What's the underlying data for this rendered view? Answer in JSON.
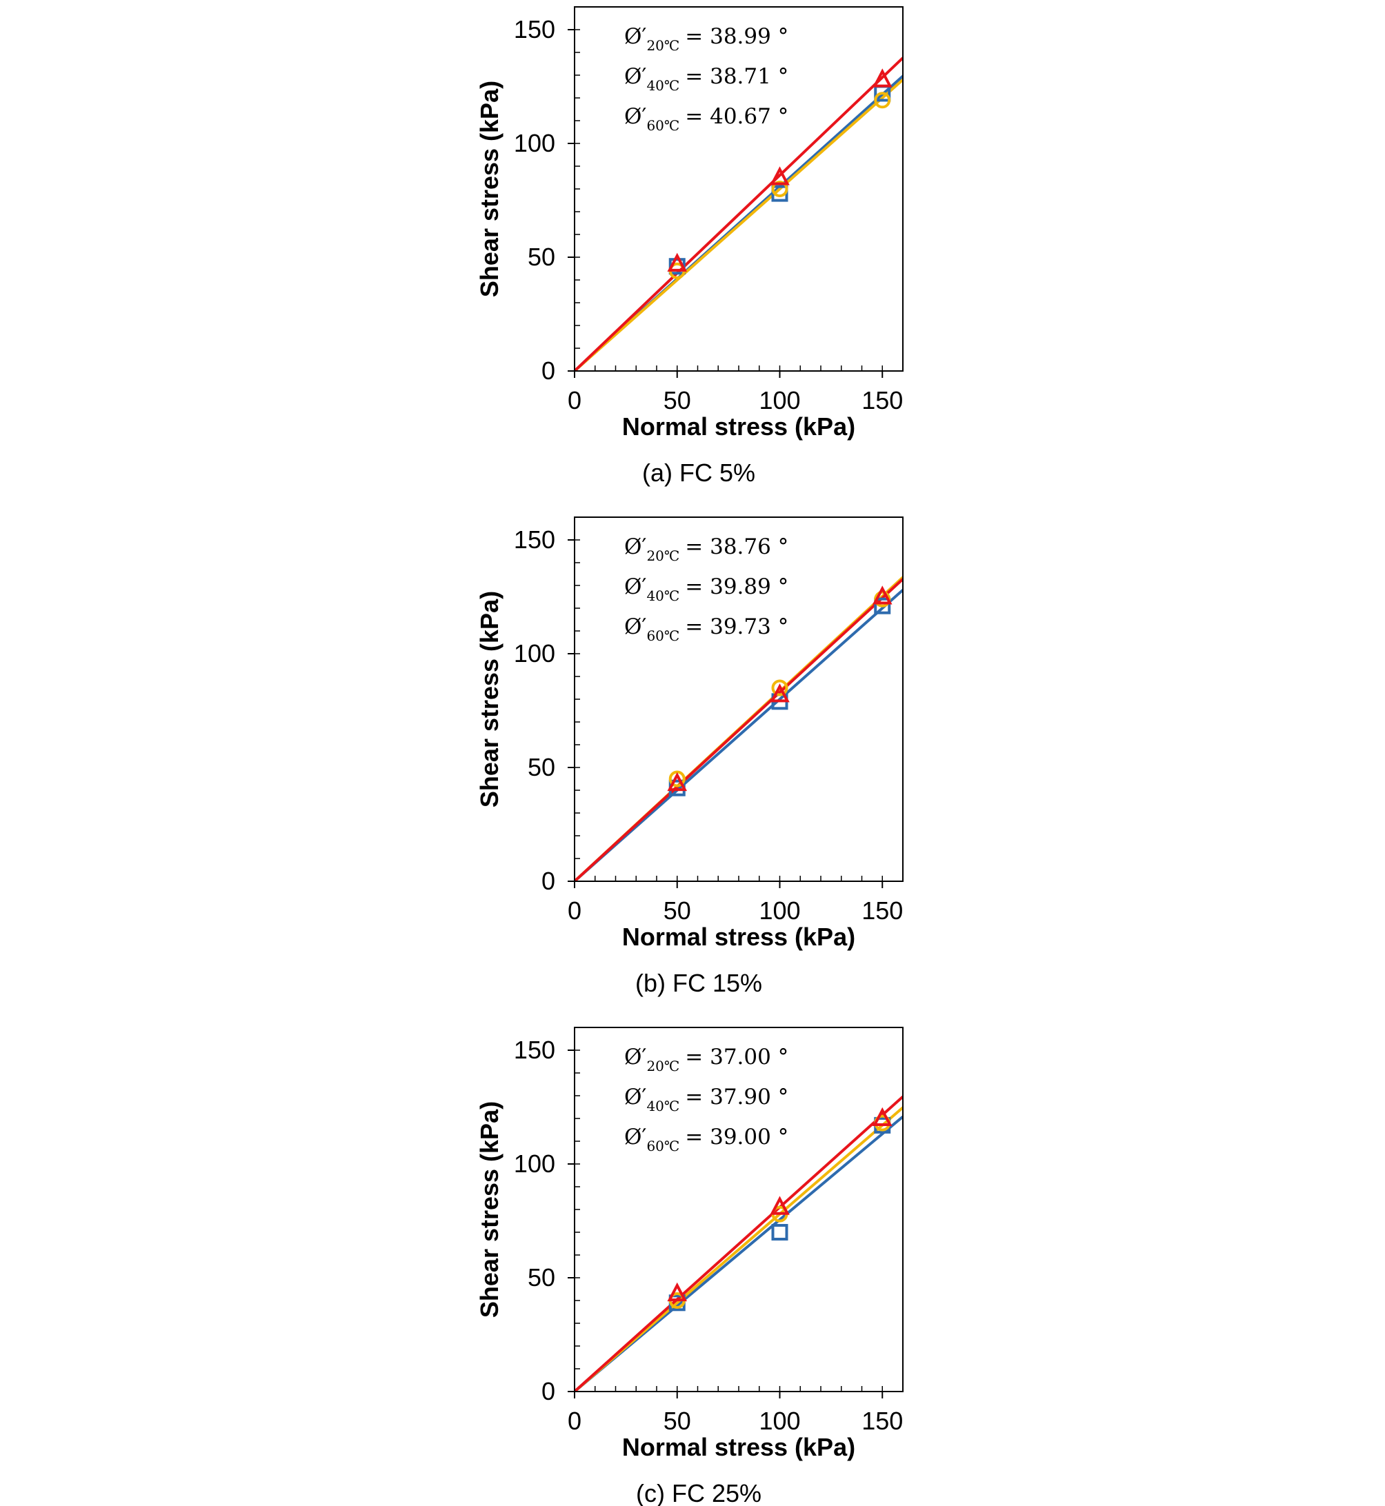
{
  "chart_data": [
    {
      "type": "scatter",
      "panel": "a",
      "caption": "(a) FC 5%",
      "xlabel": "Normal stress (kPa)",
      "ylabel": "Shear stress (kPa)",
      "xlim": [
        0,
        160
      ],
      "ylim": [
        0,
        160
      ],
      "xticks": [
        0,
        50,
        100,
        150
      ],
      "yticks": [
        0,
        50,
        100,
        150
      ],
      "grid": false,
      "annotations": [
        {
          "symbol": "Ø′",
          "subscript": "20℃",
          "text": "= 38.99 °"
        },
        {
          "symbol": "Ø′",
          "subscript": "40℃",
          "text": "= 38.71 °"
        },
        {
          "symbol": "Ø′",
          "subscript": "60℃",
          "text": "= 40.67 °"
        }
      ],
      "series": [
        {
          "marker": "square",
          "color": "#2E6BAE",
          "x": [
            50,
            100,
            150
          ],
          "y": [
            46,
            78,
            122
          ],
          "fit_slope": 0.81
        },
        {
          "marker": "circle",
          "color": "#F2B70A",
          "x": [
            50,
            100,
            150
          ],
          "y": [
            44,
            80,
            119
          ],
          "fit_slope": 0.8
        },
        {
          "marker": "triangle",
          "color": "#E8141B",
          "x": [
            50,
            100,
            150
          ],
          "y": [
            47,
            85,
            128
          ],
          "fit_slope": 0.86
        }
      ]
    },
    {
      "type": "scatter",
      "panel": "b",
      "caption": "(b) FC 15%",
      "xlabel": "Normal stress (kPa)",
      "ylabel": "Shear stress (kPa)",
      "xlim": [
        0,
        160
      ],
      "ylim": [
        0,
        160
      ],
      "xticks": [
        0,
        50,
        100,
        150
      ],
      "yticks": [
        0,
        50,
        100,
        150
      ],
      "grid": false,
      "annotations": [
        {
          "symbol": "Ø′",
          "subscript": "20℃",
          "text": "= 38.76 °"
        },
        {
          "symbol": "Ø′",
          "subscript": "40℃",
          "text": "= 39.89 °"
        },
        {
          "symbol": "Ø′",
          "subscript": "60℃",
          "text": "= 39.73 °"
        }
      ],
      "series": [
        {
          "marker": "square",
          "color": "#2E6BAE",
          "x": [
            50,
            100,
            150
          ],
          "y": [
            41,
            79,
            121
          ],
          "fit_slope": 0.8
        },
        {
          "marker": "circle",
          "color": "#F2B70A",
          "x": [
            50,
            100,
            150
          ],
          "y": [
            45,
            85,
            124
          ],
          "fit_slope": 0.835
        },
        {
          "marker": "triangle",
          "color": "#E8141B",
          "x": [
            50,
            100,
            150
          ],
          "y": [
            43,
            82,
            125
          ],
          "fit_slope": 0.83
        }
      ]
    },
    {
      "type": "scatter",
      "panel": "c",
      "caption": "(c) FC 25%",
      "xlabel": "Normal stress (kPa)",
      "ylabel": "Shear stress (kPa)",
      "xlim": [
        0,
        160
      ],
      "ylim": [
        0,
        160
      ],
      "xticks": [
        0,
        50,
        100,
        150
      ],
      "yticks": [
        0,
        50,
        100,
        150
      ],
      "grid": false,
      "annotations": [
        {
          "symbol": "Ø′",
          "subscript": "20℃",
          "text": "= 37.00 °"
        },
        {
          "symbol": "Ø′",
          "subscript": "40℃",
          "text": "= 37.90 °"
        },
        {
          "symbol": "Ø′",
          "subscript": "60℃",
          "text": "= 39.00 °"
        }
      ],
      "series": [
        {
          "marker": "square",
          "color": "#2E6BAE",
          "x": [
            50,
            100,
            150
          ],
          "y": [
            39,
            70,
            117
          ],
          "fit_slope": 0.755
        },
        {
          "marker": "circle",
          "color": "#F2B70A",
          "x": [
            50,
            100,
            150
          ],
          "y": [
            40,
            78,
            118
          ],
          "fit_slope": 0.78
        },
        {
          "marker": "triangle",
          "color": "#E8141B",
          "x": [
            50,
            100,
            150
          ],
          "y": [
            43,
            81,
            120
          ],
          "fit_slope": 0.81
        }
      ]
    }
  ]
}
